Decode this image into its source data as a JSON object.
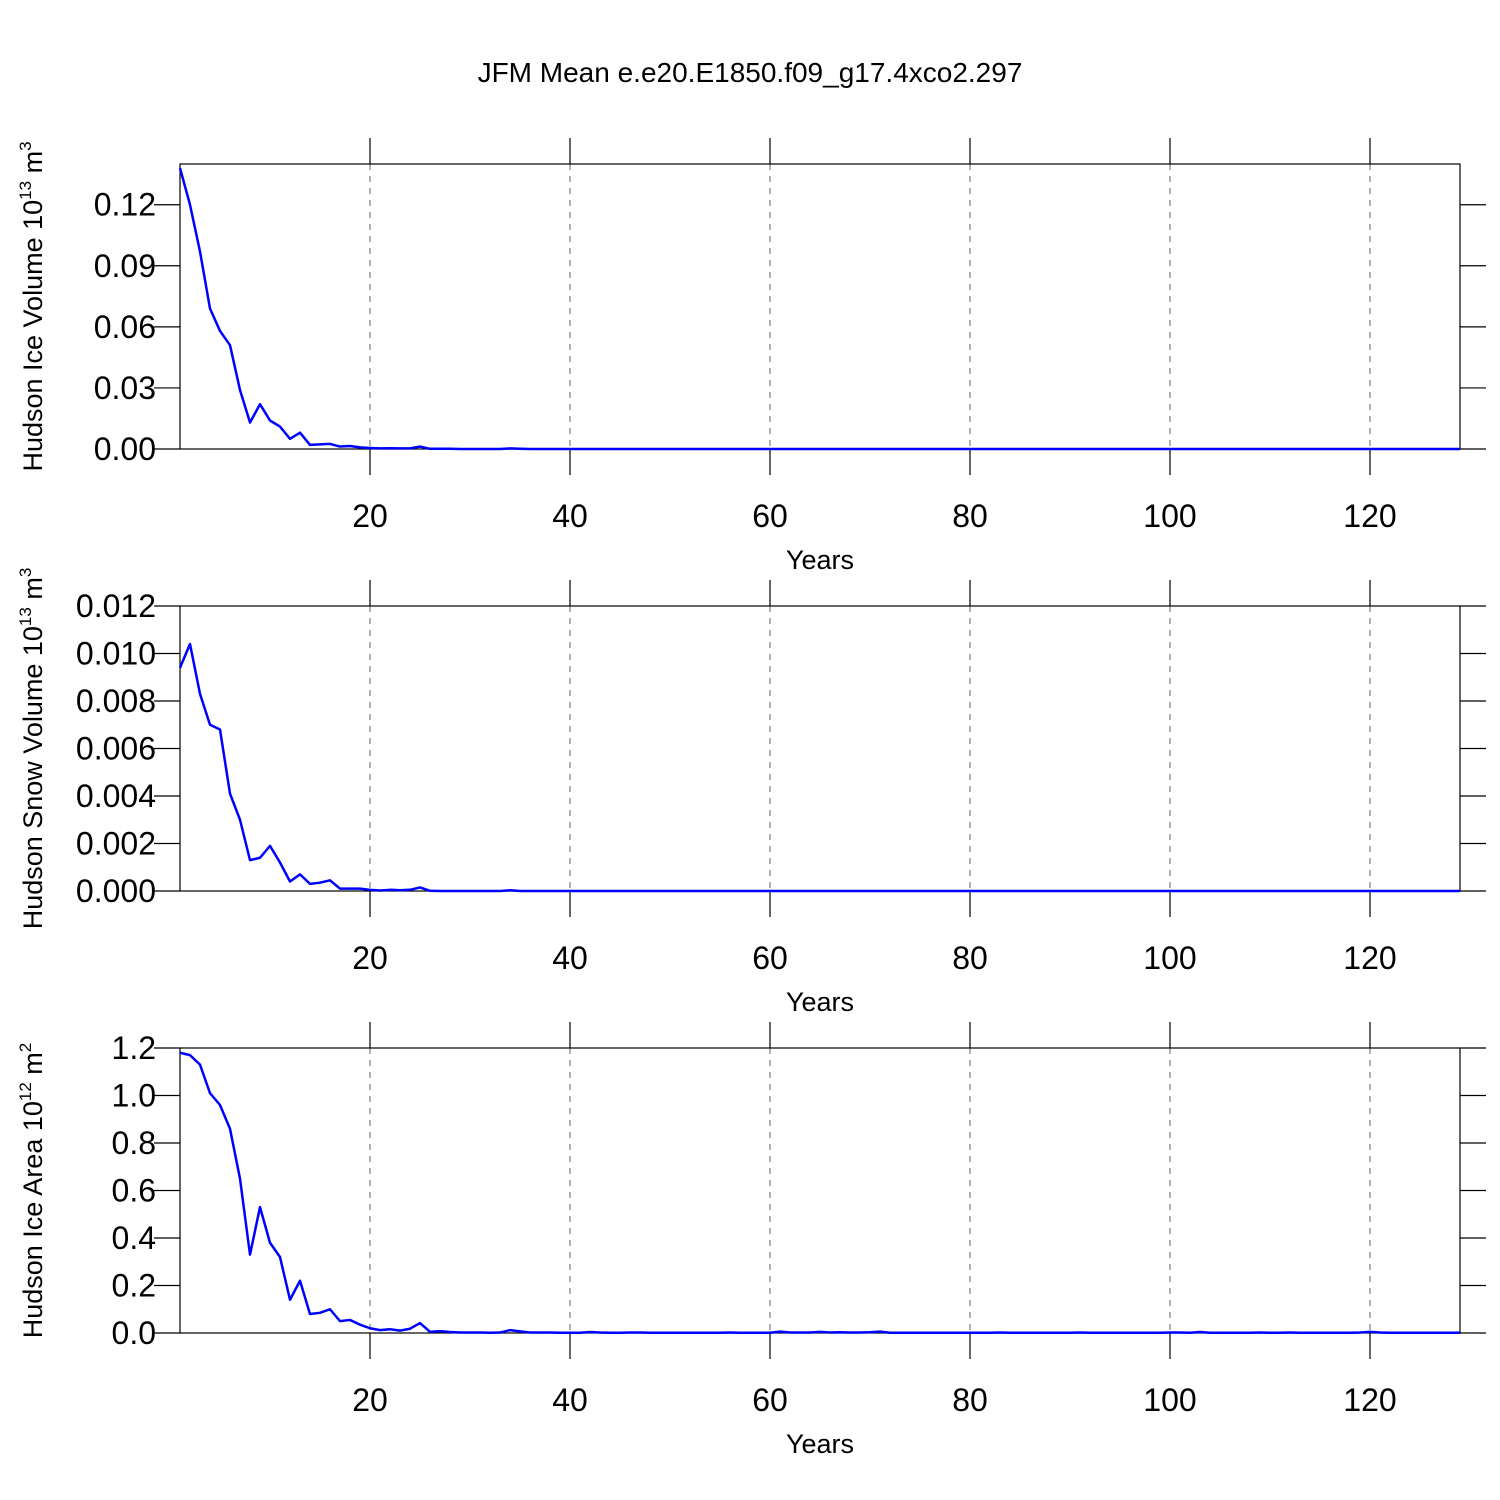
{
  "title": "JFM Mean e.e20.E1850.f09_g17.4xco2.297",
  "chart_data": [
    {
      "type": "line",
      "ylabel": "Hudson Ice Volume 10",
      "ylabel_exp": "13",
      "ylabel_unit": "m",
      "ylabel_unit_exp": "3",
      "xlabel": "Years",
      "color": "#0000ff",
      "xlim": [
        1,
        129
      ],
      "xticks": [
        20,
        40,
        60,
        80,
        100,
        120
      ],
      "ylim": [
        0,
        0.14
      ],
      "yticks": [
        {
          "value": 0,
          "label": "0.00"
        },
        0.03,
        0.06,
        0.09,
        0.12
      ],
      "grid": "x-dashed",
      "x": [
        1,
        2,
        3,
        4,
        5,
        6,
        7,
        8,
        9,
        10,
        11,
        12,
        13,
        14,
        15,
        16,
        17,
        18,
        19,
        20,
        21,
        22,
        23,
        24,
        25,
        26,
        27,
        28,
        29,
        30,
        31,
        32,
        33,
        34,
        35,
        36,
        37,
        38,
        39,
        40,
        41,
        42,
        43,
        44,
        45,
        46,
        47,
        48,
        49,
        50,
        51,
        52,
        53,
        54,
        55,
        56,
        57,
        58,
        59,
        60,
        61,
        62,
        63,
        64,
        65,
        66,
        67,
        68,
        69,
        70,
        71,
        72,
        73,
        74,
        75,
        76,
        77,
        78,
        79,
        80,
        81,
        82,
        83,
        84,
        85,
        86,
        87,
        88,
        89,
        90,
        91,
        92,
        93,
        94,
        95,
        96,
        97,
        98,
        99,
        100,
        101,
        102,
        103,
        104,
        105,
        106,
        107,
        108,
        109,
        110,
        111,
        112,
        113,
        114,
        115,
        116,
        117,
        118,
        119,
        120,
        121,
        122,
        123,
        124,
        125,
        126,
        127,
        128,
        129
      ],
      "values": [
        0.138,
        0.12,
        0.097,
        0.069,
        0.058,
        0.051,
        0.029,
        0.013,
        0.022,
        0.014,
        0.011,
        0.005,
        0.008,
        0.002,
        0.0023,
        0.0025,
        0.0012,
        0.0015,
        0.0008,
        0.0005,
        0.0003,
        0.0004,
        0.0003,
        0.0003,
        0.0012,
        0.0001,
        0.0001,
        0.0001,
        0,
        0,
        0,
        0,
        0,
        0.0003,
        0.0001,
        0,
        0,
        0,
        0,
        0,
        0,
        0,
        0,
        0,
        0,
        0,
        0,
        0,
        0,
        0,
        0,
        0,
        0,
        0,
        0,
        0,
        0,
        0,
        0,
        0,
        0,
        0,
        0,
        0,
        0,
        0,
        0,
        0,
        0,
        0,
        0,
        0,
        0,
        0,
        0,
        0,
        0,
        0,
        0,
        0,
        0,
        0,
        0,
        0,
        0,
        0,
        0,
        0,
        0,
        0,
        0,
        0,
        0,
        0,
        0,
        0,
        0,
        0,
        0,
        0,
        0,
        0,
        0,
        0,
        0,
        0,
        0,
        0,
        0,
        0,
        0,
        0,
        0,
        0,
        0,
        0,
        0,
        0,
        0,
        0,
        0,
        0,
        0,
        0,
        0,
        0,
        0,
        0,
        0
      ]
    },
    {
      "type": "line",
      "ylabel": "Hudson Snow Volume 10",
      "ylabel_exp": "13",
      "ylabel_unit": "m",
      "ylabel_unit_exp": "3",
      "xlabel": "Years",
      "color": "#0000ff",
      "xlim": [
        1,
        129
      ],
      "xticks": [
        20,
        40,
        60,
        80,
        100,
        120
      ],
      "ylim": [
        0,
        0.012
      ],
      "yticks": [
        {
          "value": 0,
          "label": "0.000"
        },
        0.002,
        0.004,
        0.006,
        0.008,
        {
          "value": 0.01,
          "label": "0.010"
        },
        0.012
      ],
      "grid": "x-dashed",
      "x": [
        1,
        2,
        3,
        4,
        5,
        6,
        7,
        8,
        9,
        10,
        11,
        12,
        13,
        14,
        15,
        16,
        17,
        18,
        19,
        20,
        21,
        22,
        23,
        24,
        25,
        26,
        27,
        28,
        29,
        30,
        31,
        32,
        33,
        34,
        35,
        36,
        37,
        38,
        39,
        40,
        41,
        42,
        43,
        44,
        45,
        46,
        47,
        48,
        49,
        50,
        51,
        52,
        53,
        54,
        55,
        56,
        57,
        58,
        59,
        60,
        61,
        62,
        63,
        64,
        65,
        66,
        67,
        68,
        69,
        70,
        71,
        72,
        73,
        74,
        75,
        76,
        77,
        78,
        79,
        80,
        81,
        82,
        83,
        84,
        85,
        86,
        87,
        88,
        89,
        90,
        91,
        92,
        93,
        94,
        95,
        96,
        97,
        98,
        99,
        100,
        101,
        102,
        103,
        104,
        105,
        106,
        107,
        108,
        109,
        110,
        111,
        112,
        113,
        114,
        115,
        116,
        117,
        118,
        119,
        120,
        121,
        122,
        123,
        124,
        125,
        126,
        127,
        128,
        129
      ],
      "values": [
        0.0094,
        0.0104,
        0.0083,
        0.007,
        0.0068,
        0.0041,
        0.003,
        0.0013,
        0.0014,
        0.0019,
        0.0012,
        0.0004,
        0.0007,
        0.0003,
        0.00035,
        0.00045,
        0.0001,
        0.0001,
        0.0001,
        5e-05,
        2e-05,
        5e-05,
        3e-05,
        5e-05,
        0.00015,
        1e-05,
        0,
        0,
        0,
        0,
        0,
        0,
        0,
        3e-05,
        0,
        0,
        0,
        0,
        0,
        0,
        0,
        0,
        0,
        0,
        0,
        0,
        0,
        0,
        0,
        0,
        0,
        0,
        0,
        0,
        0,
        0,
        0,
        0,
        0,
        0,
        0,
        0,
        0,
        0,
        0,
        0,
        0,
        0,
        0,
        0,
        0,
        0,
        0,
        0,
        0,
        0,
        0,
        0,
        0,
        0,
        0,
        0,
        0,
        0,
        0,
        0,
        0,
        0,
        0,
        0,
        0,
        0,
        0,
        0,
        0,
        0,
        0,
        0,
        0,
        0,
        0,
        0,
        0,
        0,
        0,
        0,
        0,
        0,
        0,
        0,
        0,
        0,
        0,
        0,
        0,
        0,
        0,
        0,
        0,
        0,
        0,
        0,
        0,
        0,
        0,
        0,
        0,
        0,
        0
      ]
    },
    {
      "type": "line",
      "ylabel": "Hudson Ice Area 10",
      "ylabel_exp": "12",
      "ylabel_unit": "m",
      "ylabel_unit_exp": "2",
      "xlabel": "Years",
      "color": "#0000ff",
      "xlim": [
        1,
        129
      ],
      "xticks": [
        20,
        40,
        60,
        80,
        100,
        120
      ],
      "ylim": [
        0,
        1.2
      ],
      "yticks": [
        {
          "value": 0,
          "label": "0.0"
        },
        0.2,
        0.4,
        0.6,
        0.8,
        {
          "value": 1,
          "label": "1.0"
        },
        1.2
      ],
      "grid": "x-dashed",
      "x": [
        1,
        2,
        3,
        4,
        5,
        6,
        7,
        8,
        9,
        10,
        11,
        12,
        13,
        14,
        15,
        16,
        17,
        18,
        19,
        20,
        21,
        22,
        23,
        24,
        25,
        26,
        27,
        28,
        29,
        30,
        31,
        32,
        33,
        34,
        35,
        36,
        37,
        38,
        39,
        40,
        41,
        42,
        43,
        44,
        45,
        46,
        47,
        48,
        49,
        50,
        51,
        52,
        53,
        54,
        55,
        56,
        57,
        58,
        59,
        60,
        61,
        62,
        63,
        64,
        65,
        66,
        67,
        68,
        69,
        70,
        71,
        72,
        73,
        74,
        75,
        76,
        77,
        78,
        79,
        80,
        81,
        82,
        83,
        84,
        85,
        86,
        87,
        88,
        89,
        90,
        91,
        92,
        93,
        94,
        95,
        96,
        97,
        98,
        99,
        100,
        101,
        102,
        103,
        104,
        105,
        106,
        107,
        108,
        109,
        110,
        111,
        112,
        113,
        114,
        115,
        116,
        117,
        118,
        119,
        120,
        121,
        122,
        123,
        124,
        125,
        126,
        127,
        128,
        129
      ],
      "values": [
        1.18,
        1.17,
        1.13,
        1.01,
        0.96,
        0.86,
        0.65,
        0.33,
        0.53,
        0.38,
        0.32,
        0.14,
        0.22,
        0.08,
        0.085,
        0.1,
        0.05,
        0.055,
        0.035,
        0.02,
        0.012,
        0.016,
        0.01,
        0.018,
        0.042,
        0.005,
        0.008,
        0.004,
        0.002,
        0.002,
        0.002,
        0.001,
        0.002,
        0.012,
        0.007,
        0.002,
        0.002,
        0.002,
        0.001,
        0.001,
        0.001,
        0.004,
        0.002,
        0.001,
        0.001,
        0.002,
        0.002,
        0.001,
        0.001,
        0.001,
        0.001,
        0.001,
        0.001,
        0.001,
        0.001,
        0.002,
        0.001,
        0.001,
        0.001,
        0.001,
        0.006,
        0.002,
        0.002,
        0.002,
        0.005,
        0.002,
        0.003,
        0.002,
        0.002,
        0.003,
        0.006,
        0.001,
        0.001,
        0.001,
        0.001,
        0.001,
        0.001,
        0.001,
        0.001,
        0.001,
        0.001,
        0.001,
        0.002,
        0.001,
        0.001,
        0.001,
        0.001,
        0.001,
        0.001,
        0.001,
        0.002,
        0.001,
        0.001,
        0.001,
        0.001,
        0.001,
        0.001,
        0.001,
        0.001,
        0.002,
        0.002,
        0.001,
        0.004,
        0.001,
        0.001,
        0.001,
        0.001,
        0.001,
        0.002,
        0.001,
        0.001,
        0.002,
        0.001,
        0.001,
        0.001,
        0.001,
        0.001,
        0.001,
        0.002,
        0.005,
        0.002,
        0.001,
        0.001,
        0.001,
        0.001,
        0.001,
        0.001,
        0.001,
        0.001
      ]
    }
  ]
}
